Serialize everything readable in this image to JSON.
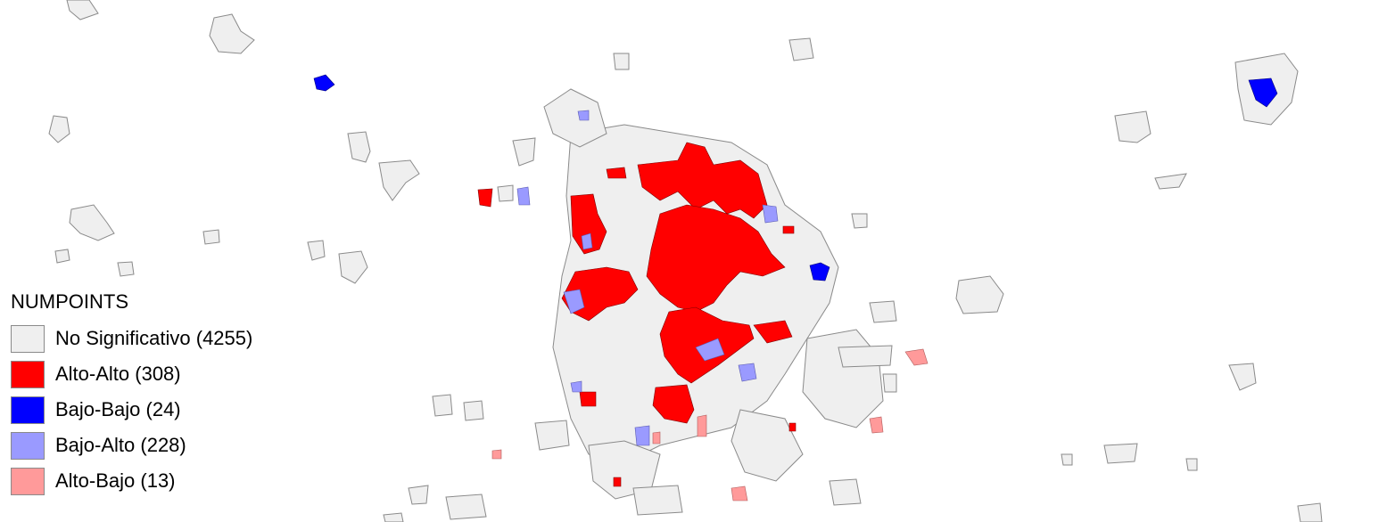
{
  "legend": {
    "title": "NUMPOINTS",
    "items": [
      {
        "label": "No Significativo (4255)",
        "color": "#efefef"
      },
      {
        "label": "Alto-Alto (308)",
        "color": "#ff0000"
      },
      {
        "label": "Bajo-Bajo (24)",
        "color": "#0000ff"
      },
      {
        "label": "Bajo-Alto (228)",
        "color": "#9a9aff"
      },
      {
        "label": "Alto-Bajo (13)",
        "color": "#ff9a9a"
      }
    ]
  },
  "colors": {
    "boundary": "#8a8a8a",
    "background": "#ffffff"
  }
}
